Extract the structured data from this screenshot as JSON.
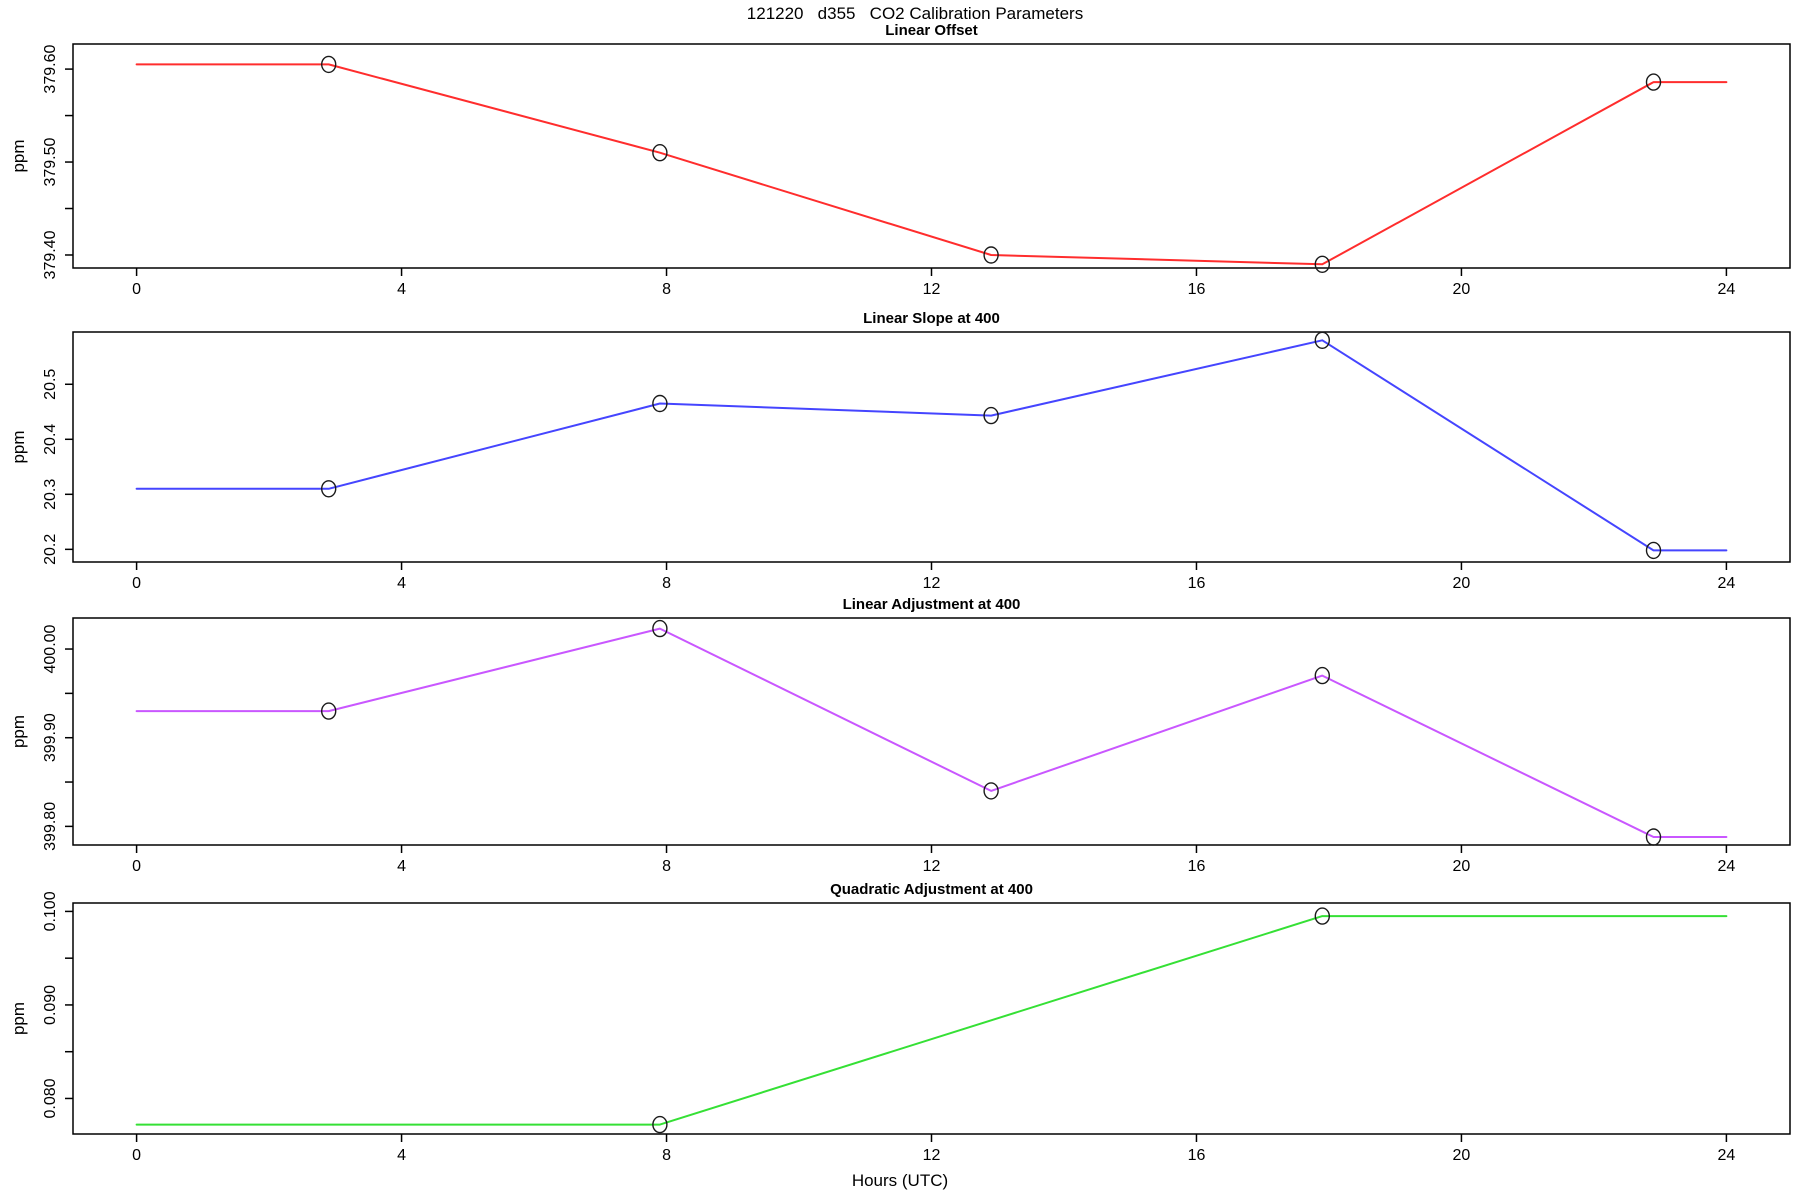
{
  "figure": {
    "title": "121220   d355   CO2 Calibration Parameters",
    "xlabel": "Hours (UTC)",
    "background": "#ffffff",
    "axis_color": "#000000",
    "marker_color": "#1a1a1a"
  },
  "chart_data": [
    {
      "type": "line",
      "title": "Linear Offset",
      "ylabel": "ppm",
      "color": "#ff2d2d",
      "marker": "open-circle",
      "grid": false,
      "legend": null,
      "xlim": [
        -0.96,
        24.96
      ],
      "ylim": [
        379.386,
        379.627
      ],
      "xticks": [
        0,
        4,
        8,
        12,
        16,
        20,
        24
      ],
      "xtick_labels": [
        "0",
        "4",
        "8",
        "12",
        "16",
        "20",
        "24"
      ],
      "yticks": [
        379.4,
        379.45,
        379.5,
        379.55,
        379.6
      ],
      "ytick_labels": [
        "379.40",
        "",
        "379.50",
        "",
        "379.60"
      ],
      "line": {
        "x": [
          0,
          2.9,
          7.9,
          12.9,
          17.9,
          22.9,
          24
        ],
        "y": [
          379.605,
          379.605,
          379.51,
          379.4,
          379.39,
          379.586,
          379.586
        ]
      },
      "points": {
        "x": [
          2.9,
          7.9,
          12.9,
          17.9,
          22.9
        ],
        "y": [
          379.605,
          379.51,
          379.4,
          379.39,
          379.586
        ]
      }
    },
    {
      "type": "line",
      "title": "Linear Slope at 400",
      "ylabel": "ppm",
      "color": "#4545ff",
      "marker": "open-circle",
      "grid": false,
      "legend": null,
      "xlim": [
        -0.96,
        24.96
      ],
      "ylim": [
        20.177,
        20.595
      ],
      "xticks": [
        0,
        4,
        8,
        12,
        16,
        20,
        24
      ],
      "xtick_labels": [
        "0",
        "4",
        "8",
        "12",
        "16",
        "20",
        "24"
      ],
      "yticks": [
        20.2,
        20.3,
        20.4,
        20.5
      ],
      "ytick_labels": [
        "20.2",
        "20.3",
        "20.4",
        "20.5"
      ],
      "line": {
        "x": [
          0,
          2.9,
          7.9,
          12.9,
          17.9,
          22.9,
          24
        ],
        "y": [
          20.31,
          20.31,
          20.465,
          20.443,
          20.58,
          20.198,
          20.198
        ]
      },
      "points": {
        "x": [
          2.9,
          7.9,
          12.9,
          17.9,
          22.9
        ],
        "y": [
          20.31,
          20.465,
          20.443,
          20.58,
          20.198
        ]
      }
    },
    {
      "type": "line",
      "title": "Linear Adjustment at 400",
      "ylabel": "ppm",
      "color": "#c957ff",
      "marker": "open-circle",
      "grid": false,
      "legend": null,
      "xlim": [
        -0.96,
        24.96
      ],
      "ylim": [
        399.779,
        400.035
      ],
      "xticks": [
        0,
        4,
        8,
        12,
        16,
        20,
        24
      ],
      "xtick_labels": [
        "0",
        "4",
        "8",
        "12",
        "16",
        "20",
        "24"
      ],
      "yticks": [
        399.8,
        399.85,
        399.9,
        399.95,
        400.0
      ],
      "ytick_labels": [
        "399.80",
        "",
        "399.90",
        "",
        "400.00"
      ],
      "line": {
        "x": [
          0,
          2.9,
          7.9,
          12.9,
          17.9,
          22.9,
          24
        ],
        "y": [
          399.93,
          399.93,
          400.023,
          399.84,
          399.97,
          399.788,
          399.788
        ]
      },
      "points": {
        "x": [
          2.9,
          7.9,
          12.9,
          17.9,
          22.9
        ],
        "y": [
          399.93,
          400.023,
          399.84,
          399.97,
          399.788
        ]
      }
    },
    {
      "type": "line",
      "title": "Quadratic Adjustment at 400",
      "ylabel": "ppm",
      "color": "#35e035",
      "marker": "open-circle",
      "grid": false,
      "legend": null,
      "xlim": [
        -0.96,
        24.96
      ],
      "ylim": [
        0.0762,
        0.1009
      ],
      "xticks": [
        0,
        4,
        8,
        12,
        16,
        20,
        24
      ],
      "xtick_labels": [
        "0",
        "4",
        "8",
        "12",
        "16",
        "20",
        "24"
      ],
      "yticks": [
        0.08,
        0.085,
        0.09,
        0.095,
        0.1
      ],
      "ytick_labels": [
        "0.080",
        "",
        "0.090",
        "",
        "0.100"
      ],
      "line": {
        "x": [
          0,
          7.9,
          17.9,
          24
        ],
        "y": [
          0.0772,
          0.0772,
          0.0995,
          0.0995
        ]
      },
      "points": {
        "x": [
          7.9,
          17.9
        ],
        "y": [
          0.0772,
          0.0995
        ]
      }
    }
  ]
}
